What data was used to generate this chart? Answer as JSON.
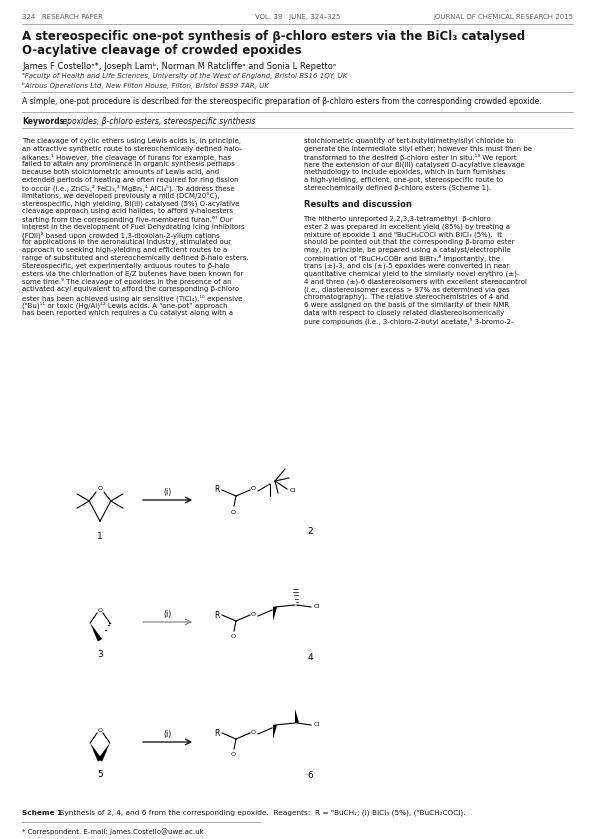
{
  "page_width": 5.95,
  "page_height": 8.39,
  "dpi": 100,
  "bg_color": "#ffffff",
  "header_left": "324   RESEARCH PAPER",
  "header_center": "VOL. 39   JUNE, 324–325",
  "header_right": "JOURNAL OF CHEMICAL RESEARCH 2015",
  "title_line1": "A stereospecific one-pot synthesis of β-chloro esters via the BiCl₃ catalysed",
  "title_line2": "O-acylative cleavage of crowded epoxides",
  "authors": "James F Costelloᵃ*, Joseph Lamᵇ, Norman M Ratcliffeᵃ and Sonia L Repettoᵃ",
  "affil1": "ᵃFaculty of Health and Life Sciences, University of the West of England, Bristol BS16 1QY, UK",
  "affil2": "ᵇAirbus Operations Ltd, New Filton House, Filton, Bristol BS99 7AR, UK",
  "abstract": "A simple, one-pot procedure is described for the stereospecific preparation of β-chloro esters from the corresponding crowded epoxide.",
  "kw_bold": "Keywords:",
  "kw_normal": " epoxides, β-chloro esters, stereospecific synthesis",
  "body_col1_lines": [
    "The cleavage of cyclic ethers using Lewis acids is, in principle,",
    "an attractive synthetic route to stereochemically defined halo-",
    "alkanes.¹ However, the cleavage of furans for example, has",
    "failed to attain any prominence in organic synthesis perhaps",
    "because both stoichiometric amounts of Lewis acid, and",
    "extended periods of heating are often required for ring fission",
    "to occur (i.e., ZnCl₂,² FeCl₃,³ MgBr₂,⁴ AlCl₃⁵). To address these",
    "limitations, we developed previously a mild (DCM/20°C),",
    "stereospecific, high yielding, Bi(III) catalysed (5%) O-acylative",
    "cleavage approach using acid halides, to afford γ-haloesters",
    "starting from the corresponding five-membered furan.⁶⁷ Our",
    "interest in the development of Fuel Dehydrating Icing Inhibitors",
    "(FDII)⁸ based upon crowded 1,3-dioxolan-2-ylium cations",
    "for applications in the aeronautical industry, stimulated our",
    "approach to seeking high-yielding and efficient routes to a",
    "range of substituted and stereochemically defined β-halo esters.",
    "Stereospecific, yet experimentally arduous routes to β-halo",
    "esters via the chlorination of E/Z butenes have been known for",
    "some time.⁹ The cleavage of epoxides in the presence of an",
    "activated acyl equivalent to afford the corresponding β-chloro",
    "ester has been achieved using air sensitive (TiCl₄),¹⁰ expensive",
    "(ᵅBu)¹¹ or toxic (Hg/Al)¹² Lewis acids. A “one-pot” approach",
    "has been reported which requires a Cu catalyst along with a"
  ],
  "body_col2_lines": [
    "stoichiometric quantity of tert-butyldimethylsilyl chloride to",
    "generate the intermediate silyl ether; however this must then be",
    "transformed to the desired β-chloro ester in situ.¹³ We report",
    "here the extension of our Bi(III) catalysed O-acylative cleavage",
    "methodology to include epoxides, which in turn furnishes",
    "a high-yielding, efficient, one-pot, stereospecific route to",
    "stereochemically defined β-chloro esters (Scheme 1).",
    "",
    "Results and discussion",
    "",
    "The hitherto unreported 2,2,3,3-tetramethyl  β-chloro",
    "ester 2 was prepared in excellent yield (85%) by treating a",
    "mixture of epoxide 1 and ᵅBuCH₂COCl with BiCl₃ (5%).  It",
    "should be pointed out that the corresponding β-bromo ester",
    "may, in principle, be prepared using a catalyst/electrophile",
    "combination of ᵅBuCH₂COBr and BiBr₃.⁸ Importantly, the",
    "trans (±)-3, and cis (±)-5 epoxides were converted in near",
    "quantitative chemical yield to the similarly novel erythro (±)-",
    "4 and threo (±)-6 diastereoisomers with excellent stereocontrol",
    "(i.e., diastereoisomer excess > 97% as determined via gas",
    "chromatography).  The relative stereochemistries of 4 and",
    "6 were assigned on the basis of the similarity of their NMR",
    "data with respect to closely related diastereoisomerically",
    "pure compounds (i.e., 3-chloro-2-butyl acetate,⁹ 3-bromo-2-"
  ],
  "results_header_line": 8,
  "scheme_caption_bold": "Scheme 1",
  "scheme_caption_normal": "  Synthesis of 2, 4, and 6 from the corresponding epoxide.  Reagents:  R = ᵅBuCH₂; (i) BiCl₃ (5%), (ᵅBuCH₂COCl).",
  "footnote": "* Correspondent. E-mail: James.Costello@uwe.ac.uk",
  "text_color": "#1a1a1a",
  "line_color": "#888888"
}
